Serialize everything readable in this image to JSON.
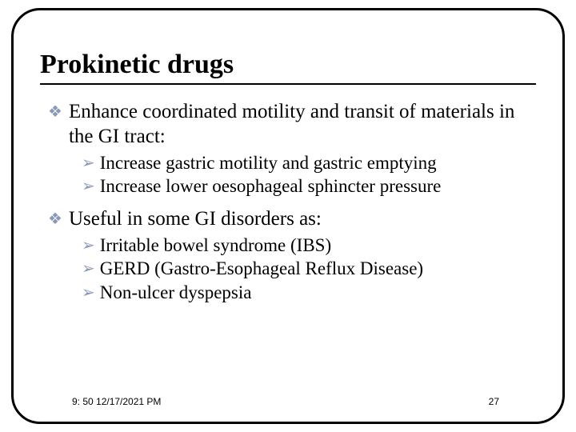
{
  "title": "Prokinetic drugs",
  "body": {
    "items": [
      {
        "text": "Enhance coordinated motility and transit of materials in the GI tract:",
        "sub": [
          "Increase gastric motility and gastric emptying",
          "Increase lower oesophageal sphincter pressure"
        ]
      },
      {
        "text": "Useful in some GI disorders as:",
        "sub": [
          "Irritable bowel syndrome (IBS)",
          "GERD (Gastro-Esophageal Reflux Disease)",
          "Non-ulcer dyspepsia"
        ]
      }
    ]
  },
  "footer": {
    "timestamp": "9: 50 12/17/2021 PM",
    "page": "27"
  },
  "style": {
    "bullet_diamond_color": "#8a99b8",
    "bullet_arrow_color": "#8a99b8",
    "title_fontsize": 34,
    "level1_fontsize": 25,
    "level2_fontsize": 23,
    "footer_fontsize": 12,
    "border_color": "#000000",
    "border_radius": 36,
    "background_color": "#ffffff"
  }
}
